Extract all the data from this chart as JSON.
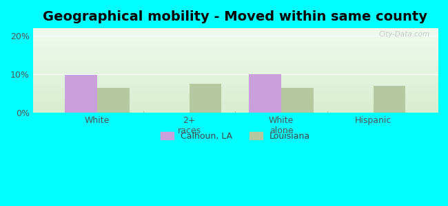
{
  "title": "Geographical mobility - Moved within same county",
  "categories": [
    "White",
    "2+\nraces",
    "White\nalone",
    "Hispanic"
  ],
  "calhoun_values": [
    9.8,
    0,
    10.0,
    0
  ],
  "louisiana_values": [
    6.5,
    7.5,
    6.5,
    7.0
  ],
  "bar_width": 0.35,
  "calhoun_color": "#c9a0dc",
  "louisiana_color": "#b5c8a0",
  "ylim": [
    0,
    22
  ],
  "yticks": [
    0,
    10,
    20
  ],
  "ytick_labels": [
    "0%",
    "10%",
    "20%"
  ],
  "grad_top": "#f0faf0",
  "grad_bottom": "#d8eece",
  "outer_background": "#00ffff",
  "watermark": "City-Data.com",
  "legend_calhoun": "Calhoun, LA",
  "legend_louisiana": "Louisiana",
  "title_fontsize": 14,
  "axis_label_fontsize": 9,
  "tick_label_fontsize": 9,
  "xlim": [
    -0.7,
    3.7
  ]
}
